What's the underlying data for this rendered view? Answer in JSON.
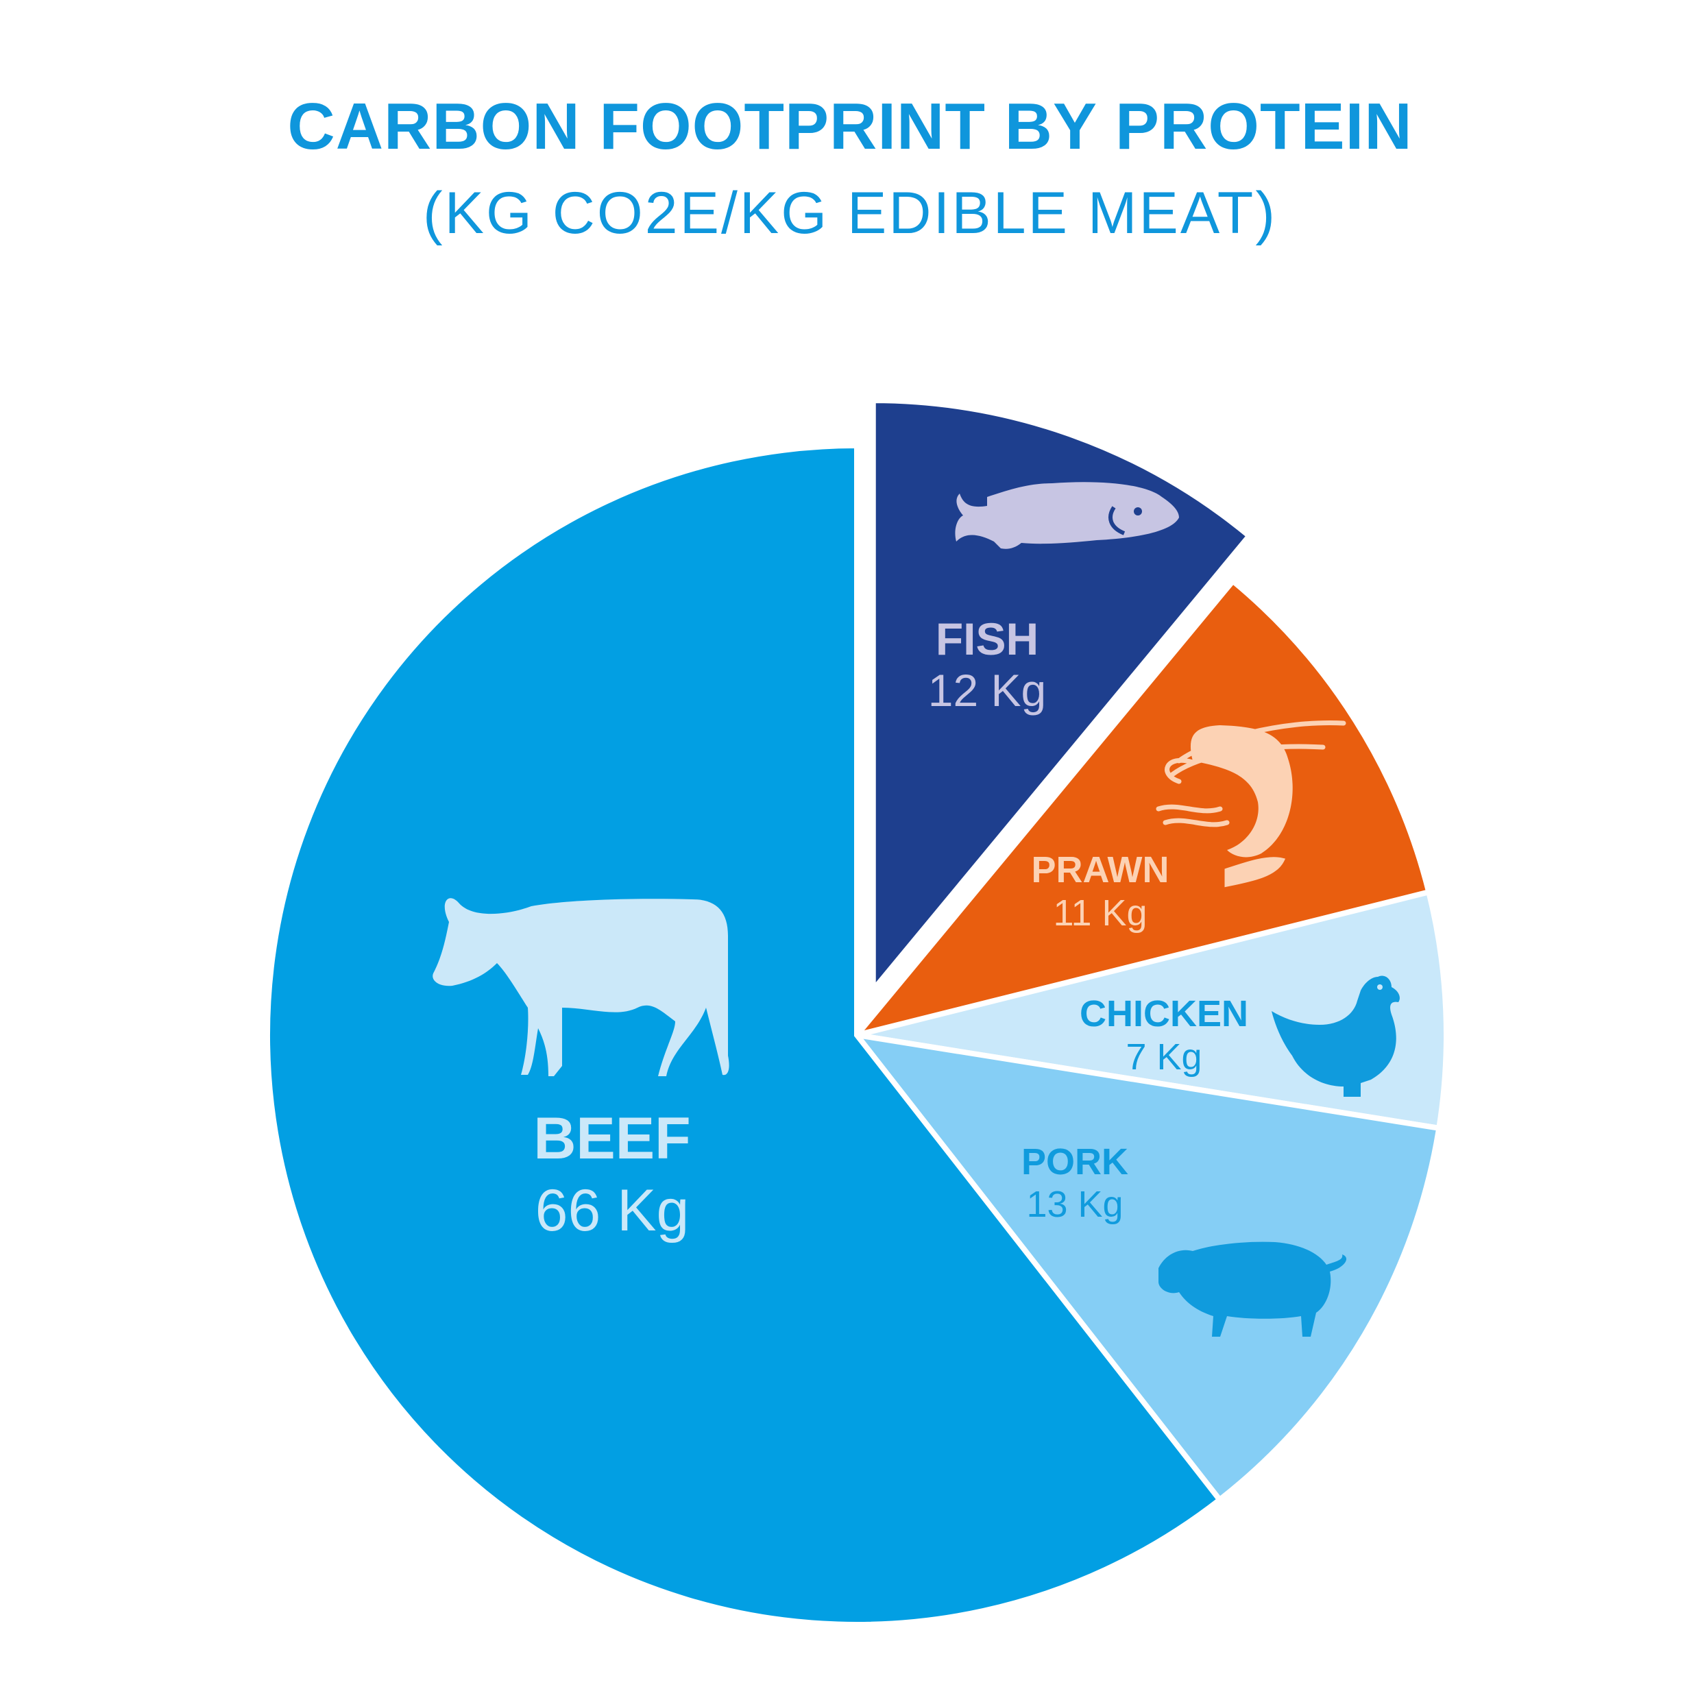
{
  "chart_data": {
    "type": "pie",
    "title": "CARBON FOOTPRINT BY PROTEIN",
    "subtitle": "(KG CO2E/KG EDIBLE MEAT)",
    "unit": "Kg",
    "exploded": [
      "Fish"
    ],
    "slices": [
      {
        "key": "beef",
        "label": "BEEF",
        "value": 66,
        "value_label": "66 Kg",
        "color": "#029fe3",
        "text_color": "#cbe8f9",
        "icon": "cow-icon"
      },
      {
        "key": "fish",
        "label": "FISH",
        "value": 12,
        "value_label": "12 Kg",
        "color": "#1e3f8e",
        "text_color": "#c7c5e3",
        "icon": "fish-icon"
      },
      {
        "key": "prawn",
        "label": "PRAWN",
        "value": 11,
        "value_label": "11 Kg",
        "color": "#e95e0f",
        "text_color": "#fcd2b4",
        "icon": "prawn-icon"
      },
      {
        "key": "chicken",
        "label": "CHICKEN",
        "value": 7,
        "value_label": "7 Kg",
        "color": "#c9e8fa",
        "text_color": "#109bdd",
        "icon": "chicken-icon"
      },
      {
        "key": "pork",
        "label": "PORK",
        "value": 13,
        "value_label": "13 Kg",
        "color": "#85cef5",
        "text_color": "#109bdd",
        "icon": "pig-icon"
      }
    ]
  }
}
